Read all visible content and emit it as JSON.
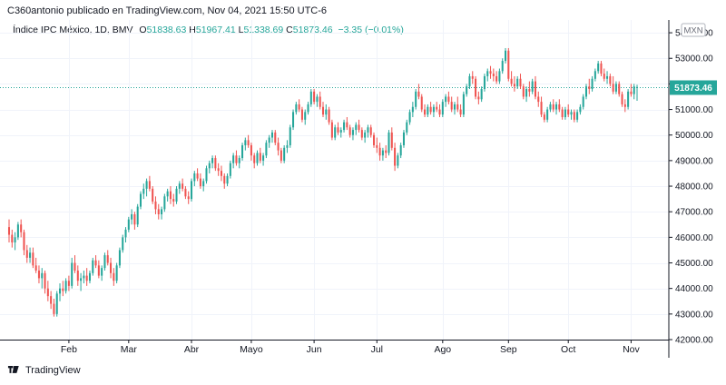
{
  "header": {
    "publisher_line": "C360antonio publicado en TradingView.com, Nov 04, 2021 15:50 UTC-6"
  },
  "legend": {
    "symbol": "Índice IPC México, 1D, BMV",
    "open_label": "O",
    "open": "51838.63",
    "high_label": "H",
    "high": "51967.41",
    "low_label": "L",
    "low": "51338.69",
    "close_label": "C",
    "close": "51873.46",
    "change": "−3.35 (−0.01%)"
  },
  "footer": {
    "brand": "TradingView"
  },
  "colors": {
    "up": "#26a69a",
    "down": "#ef5350",
    "grid": "#f0f3fa",
    "axis_text": "#131722",
    "last_price_bg": "#26a69a"
  },
  "chart_data": {
    "type": "candlestick",
    "currency": "MXN",
    "last_price": 51873.46,
    "last_price_label": "51873.46",
    "ylim": [
      42000,
      54500
    ],
    "y_ticks": [
      42000,
      43000,
      44000,
      45000,
      46000,
      47000,
      48000,
      49000,
      50000,
      51000,
      52000,
      53000,
      54000
    ],
    "y_tick_labels": [
      "42000.00",
      "43000.00",
      "44000.00",
      "45000.00",
      "46000.00",
      "47000.00",
      "48000.00",
      "49000.00",
      "50000.00",
      "51000.00",
      "52000.00",
      "53000.00",
      "54000.00"
    ],
    "x_ticks": [
      {
        "label": "Feb",
        "index": 20
      },
      {
        "label": "Mar",
        "index": 40
      },
      {
        "label": "Abr",
        "index": 61
      },
      {
        "label": "Mayo",
        "index": 81
      },
      {
        "label": "Jun",
        "index": 102
      },
      {
        "label": "Jul",
        "index": 123
      },
      {
        "label": "Ago",
        "index": 145
      },
      {
        "label": "Sep",
        "index": 167
      },
      {
        "label": "Oct",
        "index": 187
      },
      {
        "label": "Nov",
        "index": 208
      }
    ],
    "candles": [
      [
        46400,
        46700,
        45800,
        46100
      ],
      [
        46100,
        46300,
        45600,
        45800
      ],
      [
        45800,
        46200,
        45500,
        46000
      ],
      [
        46000,
        46600,
        45900,
        46500
      ],
      [
        46500,
        46700,
        46000,
        46200
      ],
      [
        46200,
        46300,
        45300,
        45500
      ],
      [
        45500,
        45700,
        45000,
        45200
      ],
      [
        45200,
        45600,
        45000,
        45400
      ],
      [
        45400,
        45600,
        44800,
        44900
      ],
      [
        44900,
        45200,
        44600,
        44700
      ],
      [
        44700,
        44900,
        44200,
        44400
      ],
      [
        44400,
        44800,
        44000,
        44600
      ],
      [
        44600,
        44700,
        43800,
        44000
      ],
      [
        44000,
        44300,
        43500,
        43700
      ],
      [
        43700,
        43900,
        43200,
        43400
      ],
      [
        43400,
        43600,
        42900,
        43000
      ],
      [
        43000,
        43900,
        42900,
        43800
      ],
      [
        43800,
        44200,
        43500,
        44000
      ],
      [
        44000,
        44300,
        43700,
        43900
      ],
      [
        43900,
        44400,
        43800,
        44300
      ],
      [
        44300,
        44500,
        43900,
        44100
      ],
      [
        44100,
        45200,
        44000,
        45000
      ],
      [
        45000,
        45300,
        44600,
        44700
      ],
      [
        44700,
        44900,
        44100,
        44300
      ],
      [
        44300,
        44600,
        43900,
        44400
      ],
      [
        44400,
        44700,
        44200,
        44500
      ],
      [
        44500,
        44800,
        44100,
        44300
      ],
      [
        44300,
        44700,
        44200,
        44600
      ],
      [
        44600,
        45200,
        44500,
        45100
      ],
      [
        45100,
        45300,
        44800,
        44900
      ],
      [
        44900,
        45100,
        44400,
        44500
      ],
      [
        44500,
        44900,
        44300,
        44800
      ],
      [
        44800,
        45400,
        44700,
        45300
      ],
      [
        45300,
        45500,
        44900,
        45000
      ],
      [
        45000,
        45200,
        44400,
        44600
      ],
      [
        44600,
        44800,
        44100,
        44300
      ],
      [
        44300,
        45000,
        44200,
        44900
      ],
      [
        44900,
        45600,
        44800,
        45500
      ],
      [
        45500,
        46100,
        45400,
        46000
      ],
      [
        46000,
        46400,
        45800,
        46300
      ],
      [
        46300,
        46800,
        46200,
        46700
      ],
      [
        46700,
        47100,
        46500,
        46900
      ],
      [
        46900,
        47000,
        46300,
        46500
      ],
      [
        46500,
        47300,
        46400,
        47200
      ],
      [
        47200,
        47800,
        47100,
        47700
      ],
      [
        47700,
        48100,
        47500,
        47900
      ],
      [
        47900,
        48300,
        47600,
        48200
      ],
      [
        48200,
        48400,
        47800,
        47900
      ],
      [
        47900,
        48000,
        47300,
        47400
      ],
      [
        47400,
        47600,
        46900,
        47100
      ],
      [
        47100,
        47300,
        46700,
        46900
      ],
      [
        46900,
        47200,
        46700,
        47100
      ],
      [
        47100,
        47700,
        47000,
        47600
      ],
      [
        47600,
        47900,
        47400,
        47800
      ],
      [
        47800,
        48000,
        47300,
        47500
      ],
      [
        47500,
        47700,
        47200,
        47400
      ],
      [
        47400,
        48000,
        47300,
        47900
      ],
      [
        47900,
        48200,
        47700,
        48100
      ],
      [
        48100,
        48300,
        47800,
        47900
      ],
      [
        47900,
        48000,
        47500,
        47600
      ],
      [
        47600,
        47800,
        47300,
        47500
      ],
      [
        47500,
        48300,
        47400,
        48200
      ],
      [
        48200,
        48600,
        48000,
        48500
      ],
      [
        48500,
        48700,
        48200,
        48300
      ],
      [
        48300,
        48500,
        47900,
        48000
      ],
      [
        48000,
        48300,
        47800,
        48200
      ],
      [
        48200,
        48800,
        48100,
        48700
      ],
      [
        48700,
        49000,
        48500,
        48900
      ],
      [
        48900,
        49200,
        48700,
        49100
      ],
      [
        49100,
        49200,
        48600,
        48700
      ],
      [
        48700,
        48900,
        48400,
        48600
      ],
      [
        48600,
        48800,
        48200,
        48400
      ],
      [
        48400,
        48500,
        47900,
        48100
      ],
      [
        48100,
        48500,
        48000,
        48400
      ],
      [
        48400,
        49000,
        48300,
        48900
      ],
      [
        48900,
        49300,
        48700,
        49200
      ],
      [
        49200,
        49400,
        48800,
        48900
      ],
      [
        48900,
        49200,
        48700,
        49100
      ],
      [
        49100,
        49700,
        49000,
        49600
      ],
      [
        49600,
        49900,
        49400,
        49800
      ],
      [
        49800,
        50000,
        49500,
        49600
      ],
      [
        49600,
        49700,
        49000,
        49200
      ],
      [
        49200,
        49300,
        48700,
        48900
      ],
      [
        48900,
        49400,
        48800,
        49300
      ],
      [
        49300,
        49500,
        48900,
        49000
      ],
      [
        49000,
        49300,
        48800,
        49200
      ],
      [
        49200,
        49800,
        49100,
        49700
      ],
      [
        49700,
        50000,
        49500,
        49900
      ],
      [
        49900,
        50200,
        49700,
        50100
      ],
      [
        50100,
        50200,
        49600,
        49700
      ],
      [
        49700,
        49900,
        49200,
        49400
      ],
      [
        49400,
        49500,
        48900,
        49000
      ],
      [
        49000,
        49600,
        48900,
        49500
      ],
      [
        49500,
        49800,
        49300,
        49600
      ],
      [
        49600,
        50400,
        49500,
        50300
      ],
      [
        50300,
        51000,
        50200,
        50900
      ],
      [
        50900,
        51300,
        50800,
        51200
      ],
      [
        51200,
        51400,
        50900,
        51000
      ],
      [
        51000,
        51100,
        50500,
        50600
      ],
      [
        50600,
        51000,
        50400,
        50900
      ],
      [
        50900,
        51300,
        50800,
        51200
      ],
      [
        51200,
        51800,
        51100,
        51700
      ],
      [
        51700,
        51800,
        51200,
        51300
      ],
      [
        51300,
        51600,
        51100,
        51500
      ],
      [
        51500,
        51700,
        51000,
        51100
      ],
      [
        51100,
        51300,
        50700,
        50800
      ],
      [
        50800,
        51200,
        50600,
        51000
      ],
      [
        51000,
        51100,
        50400,
        50500
      ],
      [
        50500,
        50600,
        49800,
        49900
      ],
      [
        49900,
        50400,
        49800,
        50300
      ],
      [
        50300,
        50500,
        50000,
        50100
      ],
      [
        50100,
        50300,
        49900,
        50200
      ],
      [
        50200,
        50600,
        50100,
        50500
      ],
      [
        50500,
        50700,
        50200,
        50300
      ],
      [
        50300,
        50400,
        49900,
        50000
      ],
      [
        50000,
        50300,
        49800,
        50200
      ],
      [
        50200,
        50500,
        50000,
        50400
      ],
      [
        50400,
        50600,
        50100,
        50200
      ],
      [
        50200,
        50300,
        49800,
        49900
      ],
      [
        49900,
        50200,
        49700,
        50100
      ],
      [
        50100,
        50400,
        49900,
        50300
      ],
      [
        50300,
        50400,
        49900,
        50000
      ],
      [
        50000,
        50100,
        49500,
        49600
      ],
      [
        49600,
        49900,
        49300,
        49500
      ],
      [
        49500,
        49700,
        49000,
        49200
      ],
      [
        49200,
        49500,
        49000,
        49400
      ],
      [
        49400,
        49600,
        49100,
        49300
      ],
      [
        49300,
        50200,
        49200,
        50100
      ],
      [
        50100,
        50300,
        49400,
        49500
      ],
      [
        49500,
        49700,
        48600,
        48800
      ],
      [
        48800,
        49300,
        48700,
        49200
      ],
      [
        49200,
        49700,
        49100,
        49600
      ],
      [
        49600,
        50200,
        49500,
        50100
      ],
      [
        50100,
        50600,
        50000,
        50500
      ],
      [
        50500,
        51000,
        50400,
        50900
      ],
      [
        50900,
        51300,
        50700,
        51100
      ],
      [
        51100,
        51800,
        51000,
        51700
      ],
      [
        51700,
        52000,
        51400,
        51500
      ],
      [
        51500,
        51600,
        50900,
        51000
      ],
      [
        51000,
        51200,
        50700,
        50800
      ],
      [
        50800,
        51200,
        50700,
        51100
      ],
      [
        51100,
        51300,
        50800,
        50900
      ],
      [
        50900,
        51200,
        50700,
        51100
      ],
      [
        51100,
        51300,
        50900,
        51000
      ],
      [
        51000,
        51200,
        50700,
        50800
      ],
      [
        50800,
        51400,
        50700,
        51300
      ],
      [
        51300,
        51600,
        51100,
        51500
      ],
      [
        51500,
        51700,
        51200,
        51300
      ],
      [
        51300,
        51500,
        50900,
        51000
      ],
      [
        51000,
        51300,
        50800,
        51200
      ],
      [
        51200,
        51500,
        50900,
        51000
      ],
      [
        51000,
        51200,
        50700,
        50800
      ],
      [
        50800,
        51700,
        50700,
        51600
      ],
      [
        51600,
        52000,
        51500,
        51900
      ],
      [
        51900,
        52400,
        51800,
        52300
      ],
      [
        52300,
        52500,
        52000,
        52200
      ],
      [
        52200,
        52300,
        51400,
        51500
      ],
      [
        51500,
        51700,
        51200,
        51400
      ],
      [
        51400,
        51900,
        51300,
        51800
      ],
      [
        51800,
        52400,
        51700,
        52300
      ],
      [
        52300,
        52600,
        52100,
        52500
      ],
      [
        52500,
        52700,
        52200,
        52400
      ],
      [
        52400,
        52600,
        52100,
        52300
      ],
      [
        52300,
        52500,
        52000,
        52100
      ],
      [
        52100,
        52600,
        52000,
        52500
      ],
      [
        52500,
        53000,
        52400,
        52900
      ],
      [
        52900,
        53400,
        52800,
        53300
      ],
      [
        53300,
        53400,
        52100,
        52200
      ],
      [
        52200,
        52500,
        51900,
        52000
      ],
      [
        52000,
        52300,
        51700,
        51900
      ],
      [
        51900,
        52300,
        51800,
        52200
      ],
      [
        52200,
        52400,
        51800,
        51900
      ],
      [
        51900,
        52000,
        51400,
        51500
      ],
      [
        51500,
        51900,
        51300,
        51800
      ],
      [
        51800,
        52100,
        51500,
        51700
      ],
      [
        51700,
        52200,
        51600,
        52100
      ],
      [
        52100,
        52300,
        51400,
        51500
      ],
      [
        51500,
        51700,
        51100,
        51300
      ],
      [
        51300,
        51500,
        50700,
        50800
      ],
      [
        50800,
        50900,
        50500,
        50600
      ],
      [
        50600,
        51100,
        50500,
        51000
      ],
      [
        51000,
        51300,
        50900,
        51200
      ],
      [
        51200,
        51400,
        50900,
        51000
      ],
      [
        51000,
        51300,
        50800,
        51200
      ],
      [
        51200,
        51400,
        50900,
        51000
      ],
      [
        51000,
        51100,
        50600,
        50700
      ],
      [
        50700,
        51100,
        50600,
        51000
      ],
      [
        51000,
        51200,
        50700,
        50800
      ],
      [
        50800,
        51000,
        50600,
        50900
      ],
      [
        50900,
        51000,
        50500,
        50600
      ],
      [
        50600,
        51000,
        50500,
        50900
      ],
      [
        50900,
        51200,
        50800,
        51100
      ],
      [
        51100,
        51600,
        51000,
        51500
      ],
      [
        51500,
        52000,
        51400,
        51900
      ],
      [
        51900,
        52200,
        51600,
        51800
      ],
      [
        51800,
        52300,
        51700,
        52200
      ],
      [
        52200,
        52600,
        52100,
        52500
      ],
      [
        52500,
        52900,
        52400,
        52800
      ],
      [
        52800,
        52900,
        52300,
        52400
      ],
      [
        52400,
        52600,
        52100,
        52200
      ],
      [
        52200,
        52500,
        52000,
        52300
      ],
      [
        52300,
        52400,
        51900,
        52000
      ],
      [
        52000,
        52300,
        51600,
        51700
      ],
      [
        51700,
        52100,
        51600,
        52000
      ],
      [
        52000,
        52100,
        51500,
        51600
      ],
      [
        51600,
        51700,
        51100,
        51200
      ],
      [
        51200,
        51400,
        50900,
        51100
      ],
      [
        51100,
        51800,
        51000,
        51700
      ],
      [
        51700,
        52000,
        51500,
        51600
      ],
      [
        51600,
        52000,
        51400,
        51900
      ],
      [
        51838.63,
        51967.41,
        51338.69,
        51873.46
      ]
    ]
  }
}
